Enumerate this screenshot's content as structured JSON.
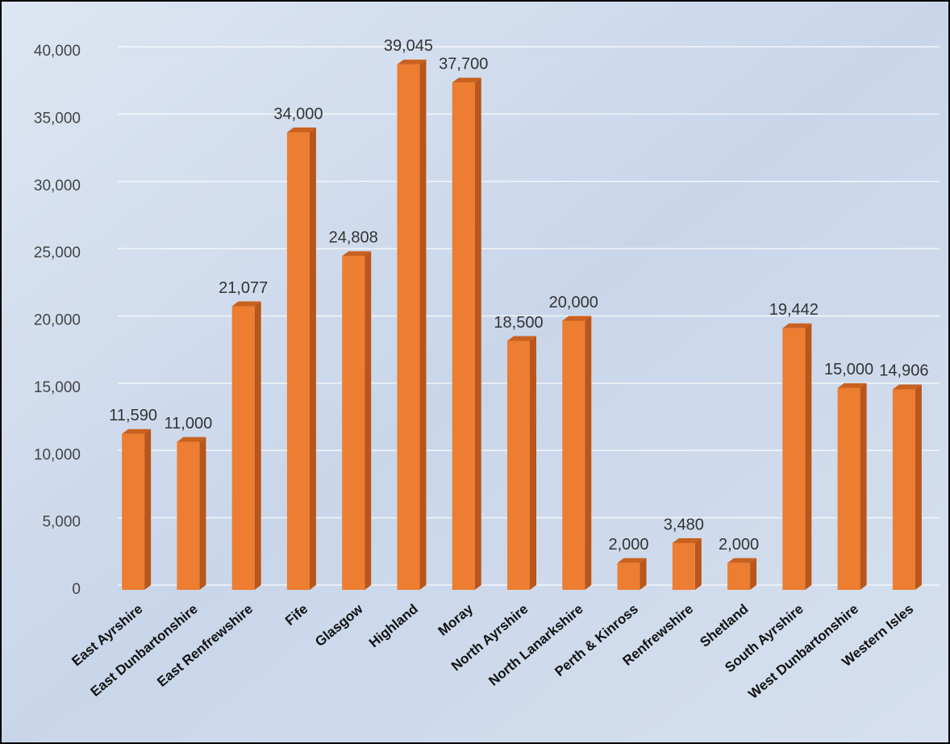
{
  "chart_data": {
    "type": "bar",
    "categories": [
      "East Ayrshire",
      "East Dunbartonshire",
      "East Renfrewshire",
      "Fife",
      "Glasgow",
      "Highland",
      "Moray",
      "North Ayrshire",
      "North Lanarkshire",
      "Perth & Kinross",
      "Renfrewshire",
      "Shetland",
      "South Ayrshire",
      "West Dunbartonshire",
      "Western Isles"
    ],
    "values": [
      11590,
      11000,
      21077,
      34000,
      24808,
      39045,
      37700,
      18500,
      20000,
      2000,
      3480,
      2000,
      19442,
      15000,
      14906
    ],
    "value_labels": [
      "11,590",
      "11,000",
      "21,077",
      "34,000",
      "24,808",
      "39,045",
      "37,700",
      "18,500",
      "20,000",
      "2,000",
      "3,480",
      "2,000",
      "19,442",
      "15,000",
      "14,906"
    ],
    "color": "#ed7d31",
    "ylim": [
      0,
      40000
    ],
    "yticks": [
      0,
      {
        "value": 5000,
        "label": "5,000"
      },
      {
        "value": 10000,
        "label": "10,000"
      },
      {
        "value": 15000,
        "label": "15,000"
      },
      {
        "value": 20000,
        "label": "20,000"
      },
      {
        "value": 25000,
        "label": "25,000"
      },
      {
        "value": 30000,
        "label": "30,000"
      },
      {
        "value": 35000,
        "label": "35,000"
      },
      {
        "value": 40000,
        "label": "40,000"
      }
    ],
    "grid": true
  }
}
